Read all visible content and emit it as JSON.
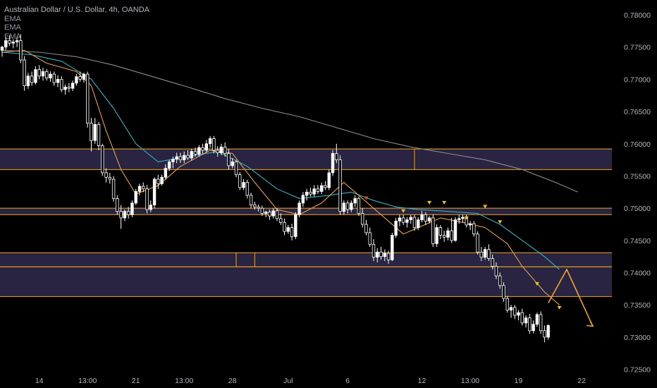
{
  "header": {
    "title": "Australian Dollar / U.S. Dollar, 4h, OANDA",
    "indicators": [
      "EMA",
      "EMA",
      "EMA"
    ]
  },
  "colors": {
    "background": "#000000",
    "candle_up": "#ffffff",
    "candle_down": "#ffffff",
    "ema_fast": "#e8a24a",
    "ema_mid": "#37b3c4",
    "ema_slow": "#8c8c8c",
    "zone_fill": "#2f2a4c",
    "zone_border": "#f5a623",
    "arrow": "#f5a623",
    "signal_down": "#f5c518",
    "signal_red": "#e04e3c"
  },
  "chart_data": {
    "type": "candlestick",
    "title": "Australian Dollar / U.S. Dollar, 4h, OANDA",
    "ylim": [
      0.7243,
      0.7823
    ],
    "y_ticks": [
      "0.78000",
      "0.77500",
      "0.77000",
      "0.76500",
      "0.76000",
      "0.75500",
      "0.75000",
      "0.74500",
      "0.74000",
      "0.73500",
      "0.73000",
      "0.72500"
    ],
    "x_ticks": [
      {
        "label": "14",
        "idx": 10
      },
      {
        "label": "13:00",
        "idx": 23
      },
      {
        "label": "21",
        "idx": 36
      },
      {
        "label": "13:00",
        "idx": 49
      },
      {
        "label": "28",
        "idx": 62
      },
      {
        "label": "Jul",
        "idx": 77
      },
      {
        "label": "6",
        "idx": 93
      },
      {
        "label": "12",
        "idx": 113
      },
      {
        "label": "13:00",
        "idx": 126
      },
      {
        "label": "19",
        "idx": 139
      },
      {
        "label": "22",
        "idx": 156
      }
    ],
    "x_count": 160,
    "grid": false,
    "candles": [
      [
        0.7745,
        0.7752,
        0.7735,
        0.775
      ],
      [
        0.775,
        0.7765,
        0.7745,
        0.776
      ],
      [
        0.776,
        0.7768,
        0.7752,
        0.7756
      ],
      [
        0.7756,
        0.7762,
        0.7748,
        0.7758
      ],
      [
        0.7758,
        0.7766,
        0.775,
        0.776
      ],
      [
        0.776,
        0.777,
        0.7725,
        0.773
      ],
      [
        0.773,
        0.7736,
        0.7682,
        0.769
      ],
      [
        0.769,
        0.771,
        0.7685,
        0.7705
      ],
      [
        0.7705,
        0.7712,
        0.769,
        0.7695
      ],
      [
        0.7695,
        0.772,
        0.7692,
        0.7715
      ],
      [
        0.7715,
        0.7722,
        0.77,
        0.7705
      ],
      [
        0.7705,
        0.7718,
        0.7698,
        0.7712
      ],
      [
        0.7712,
        0.7716,
        0.7698,
        0.7702
      ],
      [
        0.7702,
        0.7712,
        0.7696,
        0.7708
      ],
      [
        0.7708,
        0.7712,
        0.769,
        0.7695
      ],
      [
        0.7695,
        0.7706,
        0.7688,
        0.77
      ],
      [
        0.77,
        0.7705,
        0.768,
        0.7684
      ],
      [
        0.7684,
        0.7692,
        0.7676,
        0.7688
      ],
      [
        0.7688,
        0.7694,
        0.768,
        0.7686
      ],
      [
        0.7686,
        0.7698,
        0.7682,
        0.7694
      ],
      [
        0.7694,
        0.7708,
        0.769,
        0.7704
      ],
      [
        0.7704,
        0.7712,
        0.7696,
        0.77
      ],
      [
        0.77,
        0.771,
        0.7695,
        0.7708
      ],
      [
        0.7708,
        0.7712,
        0.7625,
        0.7632
      ],
      [
        0.7632,
        0.764,
        0.7588,
        0.7605
      ],
      [
        0.7605,
        0.764,
        0.76,
        0.763
      ],
      [
        0.763,
        0.7634,
        0.759,
        0.7597
      ],
      [
        0.7597,
        0.76,
        0.755,
        0.7555
      ],
      [
        0.7555,
        0.7562,
        0.754,
        0.7548
      ],
      [
        0.7548,
        0.7555,
        0.7538,
        0.7545
      ],
      [
        0.7545,
        0.755,
        0.751,
        0.7515
      ],
      [
        0.7515,
        0.752,
        0.749,
        0.7495
      ],
      [
        0.7495,
        0.7505,
        0.7468,
        0.7485
      ],
      [
        0.7485,
        0.7498,
        0.748,
        0.7495
      ],
      [
        0.7495,
        0.7502,
        0.7484,
        0.749
      ],
      [
        0.749,
        0.7512,
        0.7486,
        0.7508
      ],
      [
        0.7508,
        0.753,
        0.7505,
        0.7526
      ],
      [
        0.7526,
        0.7538,
        0.752,
        0.7534
      ],
      [
        0.7534,
        0.754,
        0.7525,
        0.753
      ],
      [
        0.753,
        0.7536,
        0.7492,
        0.7498
      ],
      [
        0.7498,
        0.7512,
        0.7494,
        0.7505
      ],
      [
        0.7505,
        0.7548,
        0.75,
        0.7545
      ],
      [
        0.7545,
        0.7552,
        0.753,
        0.7538
      ],
      [
        0.7538,
        0.7552,
        0.7535,
        0.7548
      ],
      [
        0.7548,
        0.7568,
        0.7544,
        0.7562
      ],
      [
        0.7562,
        0.7575,
        0.7558,
        0.7572
      ],
      [
        0.7572,
        0.758,
        0.7562,
        0.7576
      ],
      [
        0.7576,
        0.7586,
        0.757,
        0.758
      ],
      [
        0.758,
        0.7586,
        0.757,
        0.7575
      ],
      [
        0.7575,
        0.7588,
        0.757,
        0.7582
      ],
      [
        0.7582,
        0.759,
        0.7575,
        0.7578
      ],
      [
        0.7578,
        0.7592,
        0.7574,
        0.7588
      ],
      [
        0.7588,
        0.7594,
        0.758,
        0.7584
      ],
      [
        0.7584,
        0.7598,
        0.758,
        0.7594
      ],
      [
        0.7594,
        0.76,
        0.7584,
        0.759
      ],
      [
        0.759,
        0.7606,
        0.7586,
        0.76
      ],
      [
        0.76,
        0.7612,
        0.7594,
        0.7608
      ],
      [
        0.7608,
        0.7612,
        0.7585,
        0.759
      ],
      [
        0.759,
        0.7596,
        0.758,
        0.7586
      ],
      [
        0.7586,
        0.76,
        0.7582,
        0.7595
      ],
      [
        0.7595,
        0.7602,
        0.758,
        0.7585
      ],
      [
        0.7585,
        0.7592,
        0.756,
        0.7566
      ],
      [
        0.7566,
        0.7578,
        0.7562,
        0.7572
      ],
      [
        0.7572,
        0.7575,
        0.7548,
        0.7552
      ],
      [
        0.7552,
        0.7556,
        0.7528,
        0.7532
      ],
      [
        0.7532,
        0.7545,
        0.7528,
        0.754
      ],
      [
        0.754,
        0.7544,
        0.7515,
        0.752
      ],
      [
        0.752,
        0.7524,
        0.75,
        0.7505
      ],
      [
        0.7505,
        0.751,
        0.7498,
        0.7502
      ],
      [
        0.7502,
        0.7506,
        0.7495,
        0.75
      ],
      [
        0.75,
        0.7504,
        0.7488,
        0.7492
      ],
      [
        0.7492,
        0.7496,
        0.7486,
        0.7494
      ],
      [
        0.7494,
        0.7498,
        0.7482,
        0.7488
      ],
      [
        0.7488,
        0.75,
        0.7484,
        0.7496
      ],
      [
        0.7496,
        0.75,
        0.748,
        0.7484
      ],
      [
        0.7484,
        0.7492,
        0.7474,
        0.7478
      ],
      [
        0.7478,
        0.7484,
        0.7458,
        0.7464
      ],
      [
        0.7464,
        0.7474,
        0.746,
        0.747
      ],
      [
        0.747,
        0.7476,
        0.745,
        0.7456
      ],
      [
        0.7456,
        0.7494,
        0.7452,
        0.749
      ],
      [
        0.749,
        0.7512,
        0.7486,
        0.7508
      ],
      [
        0.7508,
        0.7525,
        0.7502,
        0.752
      ],
      [
        0.752,
        0.753,
        0.7512,
        0.7525
      ],
      [
        0.7525,
        0.7532,
        0.7518,
        0.7522
      ],
      [
        0.7522,
        0.7536,
        0.7518,
        0.753
      ],
      [
        0.753,
        0.7536,
        0.7522,
        0.7526
      ],
      [
        0.7526,
        0.754,
        0.7522,
        0.7535
      ],
      [
        0.7535,
        0.7542,
        0.7528,
        0.7532
      ],
      [
        0.7532,
        0.756,
        0.7528,
        0.7555
      ],
      [
        0.7555,
        0.759,
        0.755,
        0.7585
      ],
      [
        0.7585,
        0.76,
        0.757,
        0.7575
      ],
      [
        0.7575,
        0.7582,
        0.749,
        0.7495
      ],
      [
        0.7495,
        0.7512,
        0.749,
        0.7508
      ],
      [
        0.7508,
        0.7512,
        0.7492,
        0.7498
      ],
      [
        0.7498,
        0.7512,
        0.7494,
        0.7508
      ],
      [
        0.7508,
        0.752,
        0.7502,
        0.7515
      ],
      [
        0.7515,
        0.7518,
        0.7488,
        0.7492
      ],
      [
        0.7492,
        0.75,
        0.747,
        0.7475
      ],
      [
        0.7475,
        0.7482,
        0.7458,
        0.7462
      ],
      [
        0.7462,
        0.747,
        0.744,
        0.7444
      ],
      [
        0.7444,
        0.7452,
        0.7418,
        0.7424
      ],
      [
        0.7424,
        0.7438,
        0.7416,
        0.7432
      ],
      [
        0.7432,
        0.744,
        0.742,
        0.7425
      ],
      [
        0.7425,
        0.7436,
        0.7418,
        0.743
      ],
      [
        0.743,
        0.7434,
        0.7414,
        0.742
      ],
      [
        0.742,
        0.7462,
        0.7418,
        0.7458
      ],
      [
        0.7458,
        0.7485,
        0.7454,
        0.748
      ],
      [
        0.748,
        0.749,
        0.7472,
        0.7485
      ],
      [
        0.7485,
        0.749,
        0.7474,
        0.7478
      ],
      [
        0.7478,
        0.7486,
        0.747,
        0.7482
      ],
      [
        0.7482,
        0.749,
        0.7476,
        0.7486
      ],
      [
        0.7486,
        0.749,
        0.7465,
        0.747
      ],
      [
        0.747,
        0.7486,
        0.7466,
        0.7482
      ],
      [
        0.7482,
        0.7496,
        0.7478,
        0.749
      ],
      [
        0.749,
        0.7494,
        0.7474,
        0.748
      ],
      [
        0.748,
        0.7488,
        0.7476,
        0.7485
      ],
      [
        0.7485,
        0.749,
        0.744,
        0.7445
      ],
      [
        0.7445,
        0.7475,
        0.744,
        0.747
      ],
      [
        0.747,
        0.7474,
        0.7452,
        0.7458
      ],
      [
        0.7458,
        0.7465,
        0.7448,
        0.7455
      ],
      [
        0.7455,
        0.747,
        0.745,
        0.7465
      ],
      [
        0.7465,
        0.7485,
        0.7446,
        0.745
      ],
      [
        0.745,
        0.7486,
        0.7448,
        0.7482
      ],
      [
        0.7482,
        0.749,
        0.7476,
        0.7484
      ],
      [
        0.7484,
        0.749,
        0.7478,
        0.7486
      ],
      [
        0.7486,
        0.749,
        0.747,
        0.7474
      ],
      [
        0.7474,
        0.748,
        0.7466,
        0.7476
      ],
      [
        0.7476,
        0.748,
        0.7456,
        0.746
      ],
      [
        0.746,
        0.7464,
        0.7428,
        0.7432
      ],
      [
        0.7432,
        0.744,
        0.7418,
        0.7424
      ],
      [
        0.7424,
        0.744,
        0.742,
        0.7436
      ],
      [
        0.7436,
        0.7444,
        0.7418,
        0.7422
      ],
      [
        0.7422,
        0.7428,
        0.7405,
        0.741
      ],
      [
        0.741,
        0.7416,
        0.739,
        0.7395
      ],
      [
        0.7395,
        0.74,
        0.7375,
        0.738
      ],
      [
        0.738,
        0.7385,
        0.7355,
        0.736
      ],
      [
        0.736,
        0.7364,
        0.7338,
        0.7342
      ],
      [
        0.7342,
        0.735,
        0.733,
        0.7346
      ],
      [
        0.7346,
        0.735,
        0.7328,
        0.7334
      ],
      [
        0.7334,
        0.7342,
        0.7326,
        0.7338
      ],
      [
        0.7338,
        0.7344,
        0.7318,
        0.7322
      ],
      [
        0.7322,
        0.7334,
        0.7315,
        0.733
      ],
      [
        0.733,
        0.7336,
        0.7305,
        0.731
      ],
      [
        0.731,
        0.7326,
        0.7306,
        0.732
      ],
      [
        0.732,
        0.7338,
        0.7316,
        0.7335
      ],
      [
        0.7335,
        0.734,
        0.7305,
        0.731
      ],
      [
        0.731,
        0.7318,
        0.7292,
        0.73
      ],
      [
        0.73,
        0.732,
        0.7296,
        0.7318
      ]
    ],
    "ema_slow": [
      [
        0,
        0.7745
      ],
      [
        10,
        0.7742
      ],
      [
        20,
        0.7735
      ],
      [
        30,
        0.7722
      ],
      [
        40,
        0.7705
      ],
      [
        50,
        0.7688
      ],
      [
        60,
        0.767
      ],
      [
        70,
        0.7655
      ],
      [
        80,
        0.7642
      ],
      [
        90,
        0.7625
      ],
      [
        100,
        0.7608
      ],
      [
        110,
        0.7595
      ],
      [
        120,
        0.7585
      ],
      [
        130,
        0.7575
      ],
      [
        140,
        0.756
      ],
      [
        149,
        0.754
      ],
      [
        155,
        0.7525
      ]
    ],
    "ema_mid": [
      [
        0,
        0.7742
      ],
      [
        8,
        0.7738
      ],
      [
        16,
        0.7728
      ],
      [
        24,
        0.77
      ],
      [
        30,
        0.7655
      ],
      [
        36,
        0.76
      ],
      [
        42,
        0.7572
      ],
      [
        50,
        0.758
      ],
      [
        58,
        0.7588
      ],
      [
        66,
        0.7565
      ],
      [
        74,
        0.753
      ],
      [
        80,
        0.7515
      ],
      [
        88,
        0.752
      ],
      [
        94,
        0.7525
      ],
      [
        100,
        0.7512
      ],
      [
        106,
        0.7502
      ],
      [
        112,
        0.7498
      ],
      [
        120,
        0.7495
      ],
      [
        128,
        0.7492
      ],
      [
        134,
        0.7475
      ],
      [
        140,
        0.745
      ],
      [
        146,
        0.7425
      ],
      [
        150,
        0.7405
      ]
    ],
    "ema_fast": [
      [
        0,
        0.7742
      ],
      [
        6,
        0.7745
      ],
      [
        12,
        0.7725
      ],
      [
        20,
        0.7712
      ],
      [
        24,
        0.769
      ],
      [
        28,
        0.762
      ],
      [
        32,
        0.756
      ],
      [
        36,
        0.7522
      ],
      [
        42,
        0.7535
      ],
      [
        48,
        0.7565
      ],
      [
        56,
        0.759
      ],
      [
        62,
        0.7585
      ],
      [
        68,
        0.754
      ],
      [
        74,
        0.7498
      ],
      [
        80,
        0.749
      ],
      [
        86,
        0.7508
      ],
      [
        92,
        0.754
      ],
      [
        96,
        0.752
      ],
      [
        102,
        0.749
      ],
      [
        108,
        0.746
      ],
      [
        112,
        0.747
      ],
      [
        118,
        0.7485
      ],
      [
        124,
        0.7478
      ],
      [
        130,
        0.747
      ],
      [
        136,
        0.7445
      ],
      [
        140,
        0.741
      ],
      [
        146,
        0.737
      ],
      [
        150,
        0.735
      ]
    ],
    "zones": [
      {
        "top": 0.7592,
        "bottom": 0.756
      },
      {
        "top": 0.75,
        "bottom": 0.749
      },
      {
        "top": 0.7431,
        "bottom": 0.7409
      },
      {
        "top": 0.7409,
        "bottom": 0.7363
      }
    ],
    "zone_dividers": [
      {
        "idx": 111,
        "zone": 0
      },
      {
        "idx": 63,
        "zone": 2
      },
      {
        "idx": 68,
        "zone": 2
      }
    ],
    "signals_down": [
      {
        "idx": 98,
        "price": 0.7515,
        "color": "signal_red"
      },
      {
        "idx": 108,
        "price": 0.7495
      },
      {
        "idx": 115,
        "price": 0.7508
      },
      {
        "idx": 119,
        "price": 0.7508
      },
      {
        "idx": 125,
        "price": 0.7484
      },
      {
        "idx": 130,
        "price": 0.7502
      },
      {
        "idx": 134,
        "price": 0.7478
      },
      {
        "idx": 144,
        "price": 0.7382
      },
      {
        "idx": 150,
        "price": 0.7345
      }
    ],
    "projection_arrow": [
      [
        147,
        0.7353
      ],
      [
        152,
        0.7405
      ],
      [
        159,
        0.7317
      ]
    ]
  }
}
